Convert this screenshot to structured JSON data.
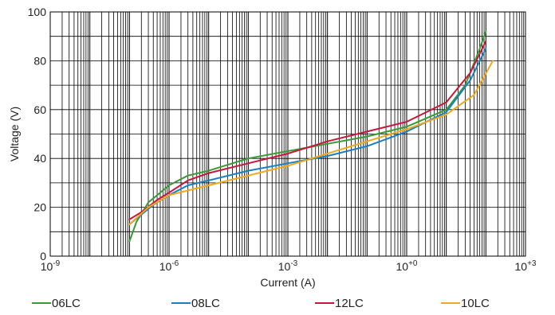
{
  "chart_data": {
    "type": "line",
    "xlabel": "Current (A)",
    "ylabel": "Voltage (V)",
    "x_scale": "log",
    "xlim": [
      1e-09,
      1000
    ],
    "ylim": [
      0,
      100
    ],
    "grid": true,
    "legend_position": "bottom",
    "x_tick_labels": [
      {
        "base": "10",
        "exp": "-9"
      },
      {
        "base": "10",
        "exp": "-6"
      },
      {
        "base": "10",
        "exp": "-3"
      },
      {
        "base": "10",
        "exp": "+0"
      },
      {
        "base": "10",
        "exp": "+3"
      }
    ],
    "y_tick_labels": [
      "0",
      "20",
      "40",
      "60",
      "80",
      "100"
    ],
    "series": [
      {
        "name": "06LC",
        "color": "#3a9a35",
        "points": [
          [
            1e-07,
            6
          ],
          [
            1.5e-07,
            14
          ],
          [
            3e-07,
            22
          ],
          [
            1e-06,
            29
          ],
          [
            3e-06,
            33
          ],
          [
            1e-05,
            35
          ],
          [
            0.0001,
            40
          ],
          [
            0.001,
            43
          ],
          [
            0.01,
            46
          ],
          [
            0.1,
            49
          ],
          [
            1,
            53
          ],
          [
            10,
            60
          ],
          [
            30,
            70
          ],
          [
            70,
            85
          ],
          [
            100,
            92
          ]
        ]
      },
      {
        "name": "08LC",
        "color": "#1a7fc1",
        "points": [
          [
            1e-07,
            13
          ],
          [
            2e-07,
            17
          ],
          [
            4e-07,
            21
          ],
          [
            1e-06,
            25
          ],
          [
            3e-06,
            29
          ],
          [
            1e-05,
            31
          ],
          [
            0.0001,
            35
          ],
          [
            0.001,
            38
          ],
          [
            0.01,
            41
          ],
          [
            0.1,
            45
          ],
          [
            1,
            51
          ],
          [
            10,
            59
          ],
          [
            40,
            72
          ],
          [
            100,
            85
          ]
        ]
      },
      {
        "name": "12LC",
        "color": "#c8163c",
        "points": [
          [
            1e-07,
            15
          ],
          [
            2e-07,
            18
          ],
          [
            5e-07,
            23
          ],
          [
            1e-06,
            26
          ],
          [
            3e-06,
            31
          ],
          [
            1e-05,
            34
          ],
          [
            0.0001,
            38
          ],
          [
            0.001,
            42
          ],
          [
            0.01,
            47
          ],
          [
            0.1,
            51
          ],
          [
            1,
            55
          ],
          [
            10,
            63
          ],
          [
            40,
            75
          ],
          [
            100,
            88
          ]
        ]
      },
      {
        "name": "10LC",
        "color": "#f0a81c",
        "points": [
          [
            1e-07,
            13
          ],
          [
            3e-07,
            20
          ],
          [
            1e-06,
            25
          ],
          [
            1e-05,
            29
          ],
          [
            0.0001,
            33
          ],
          [
            0.001,
            37
          ],
          [
            0.01,
            42
          ],
          [
            0.1,
            47
          ],
          [
            1,
            52
          ],
          [
            10,
            58
          ],
          [
            50,
            66
          ],
          [
            150,
            80
          ]
        ]
      }
    ]
  }
}
